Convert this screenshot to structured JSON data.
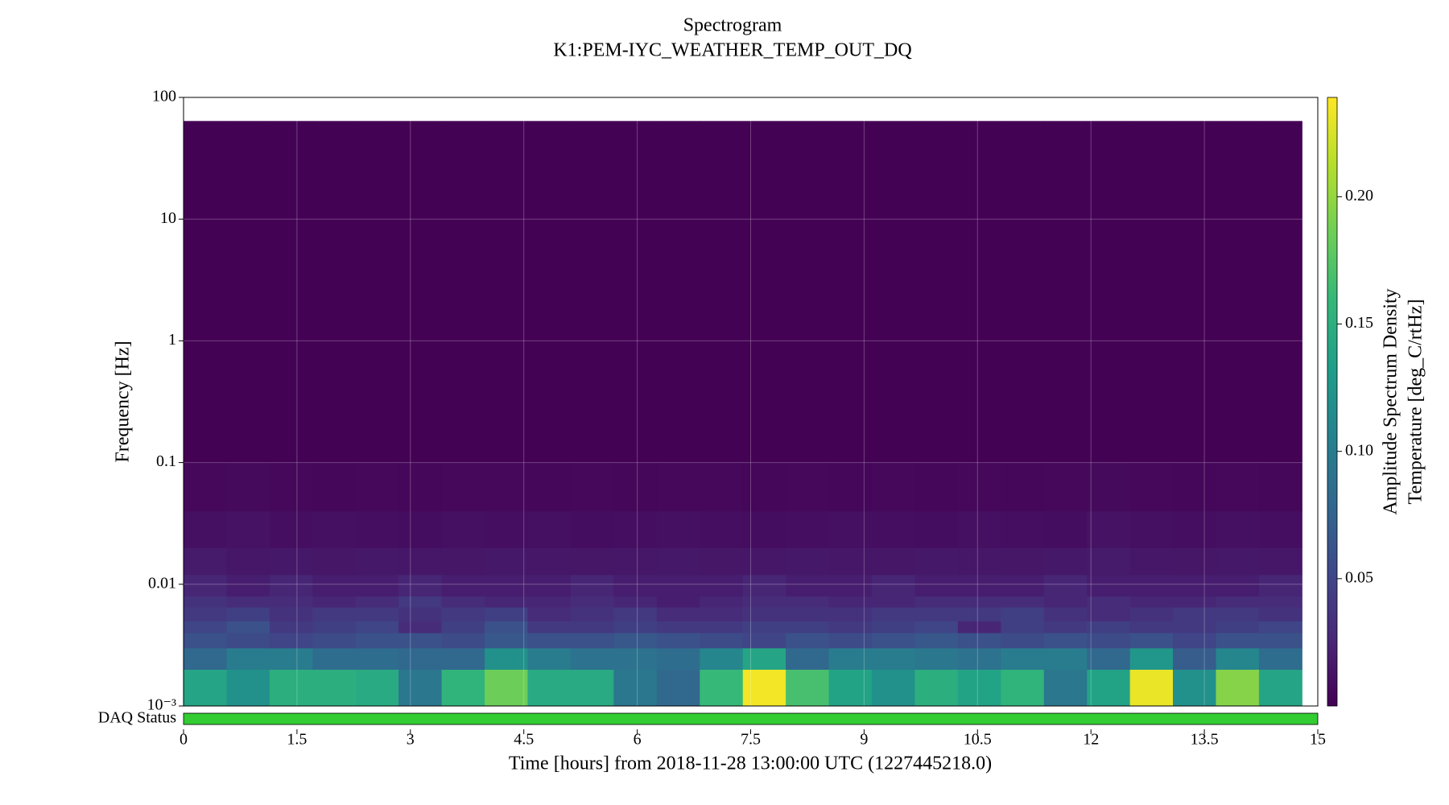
{
  "chart_data": {
    "type": "spectrogram",
    "title": "Spectrogram",
    "subtitle": "K1:PEM-IYC_WEATHER_TEMP_OUT_DQ",
    "xlabel": "Time [hours] from 2018-11-28 13:00:00 UTC (1227445218.0)",
    "ylabel": "Frequency [Hz]",
    "colorbar_label": [
      "Amplitude Spectrum Density",
      "Temperature [deg_C/rtHz]"
    ],
    "colormap": "viridis",
    "yscale": "log",
    "grid": true,
    "xlim": [
      0,
      15
    ],
    "xticks": [
      0,
      1.5,
      3,
      4.5,
      6,
      7.5,
      9,
      10.5,
      12,
      13.5,
      15
    ],
    "ylim": [
      0.001,
      100
    ],
    "yticks": [
      {
        "value": 0.001,
        "label": "10⁻³"
      },
      0.01,
      0.1,
      1,
      10,
      100
    ],
    "clim": [
      0,
      0.239
    ],
    "cticks": [
      0.05,
      {
        "value": 0.1,
        "label": "0.10"
      },
      0.15,
      {
        "value": 0.2,
        "label": "0.20"
      }
    ],
    "x_edges": [
      0,
      0.569,
      1.138,
      1.707,
      2.276,
      2.844,
      3.413,
      3.982,
      4.551,
      5.12,
      5.689,
      6.258,
      6.827,
      7.396,
      7.964,
      8.533,
      9.102,
      9.671,
      10.24,
      10.809,
      11.378,
      11.947,
      12.516,
      13.084,
      13.653,
      14.222,
      14.791
    ],
    "f_edges": [
      0.001,
      0.002,
      0.003,
      0.004,
      0.005,
      0.0065,
      0.008,
      0.012,
      0.02,
      0.04,
      0.1,
      64
    ],
    "z": [
      [
        0.14,
        0.12,
        0.15,
        0.15,
        0.145,
        0.095,
        0.155,
        0.185,
        0.145,
        0.145,
        0.095,
        0.08,
        0.16,
        0.235,
        0.168,
        0.138,
        0.12,
        0.15,
        0.138,
        0.155,
        0.095,
        0.138,
        0.232,
        0.12,
        0.195,
        0.14
      ],
      [
        0.08,
        0.1,
        0.1,
        0.085,
        0.085,
        0.08,
        0.08,
        0.12,
        0.1,
        0.09,
        0.09,
        0.085,
        0.11,
        0.14,
        0.08,
        0.1,
        0.1,
        0.095,
        0.09,
        0.1,
        0.1,
        0.08,
        0.125,
        0.07,
        0.11,
        0.085
      ],
      [
        0.06,
        0.055,
        0.05,
        0.055,
        0.06,
        0.06,
        0.055,
        0.065,
        0.06,
        0.06,
        0.065,
        0.06,
        0.055,
        0.05,
        0.06,
        0.055,
        0.06,
        0.065,
        0.06,
        0.055,
        0.06,
        0.055,
        0.06,
        0.05,
        0.06,
        0.06
      ],
      [
        0.05,
        0.06,
        0.04,
        0.045,
        0.05,
        0.03,
        0.045,
        0.06,
        0.04,
        0.04,
        0.045,
        0.04,
        0.04,
        0.045,
        0.045,
        0.04,
        0.045,
        0.05,
        0.025,
        0.045,
        0.04,
        0.045,
        0.04,
        0.04,
        0.045,
        0.05
      ],
      [
        0.04,
        0.045,
        0.035,
        0.04,
        0.04,
        0.035,
        0.04,
        0.045,
        0.03,
        0.035,
        0.04,
        0.03,
        0.03,
        0.035,
        0.035,
        0.035,
        0.04,
        0.04,
        0.04,
        0.045,
        0.035,
        0.03,
        0.035,
        0.04,
        0.04,
        0.035
      ],
      [
        0.035,
        0.03,
        0.03,
        0.025,
        0.03,
        0.04,
        0.03,
        0.025,
        0.025,
        0.03,
        0.025,
        0.02,
        0.025,
        0.03,
        0.03,
        0.025,
        0.025,
        0.03,
        0.03,
        0.03,
        0.025,
        0.03,
        0.025,
        0.025,
        0.03,
        0.03
      ],
      [
        0.025,
        0.02,
        0.025,
        0.02,
        0.02,
        0.025,
        0.02,
        0.02,
        0.02,
        0.025,
        0.02,
        0.02,
        0.02,
        0.025,
        0.02,
        0.02,
        0.025,
        0.02,
        0.02,
        0.02,
        0.025,
        0.02,
        0.02,
        0.02,
        0.02,
        0.025
      ],
      [
        0.018,
        0.015,
        0.016,
        0.014,
        0.016,
        0.015,
        0.014,
        0.016,
        0.015,
        0.014,
        0.015,
        0.016,
        0.014,
        0.015,
        0.016,
        0.015,
        0.014,
        0.016,
        0.015,
        0.014,
        0.016,
        0.018,
        0.015,
        0.014,
        0.016,
        0.015
      ],
      [
        0.01,
        0.012,
        0.009,
        0.01,
        0.009,
        0.008,
        0.01,
        0.009,
        0.01,
        0.008,
        0.009,
        0.01,
        0.009,
        0.008,
        0.009,
        0.01,
        0.009,
        0.008,
        0.01,
        0.009,
        0.008,
        0.012,
        0.01,
        0.009,
        0.01,
        0.009
      ],
      [
        0.005,
        0.006,
        0.005,
        0.004,
        0.005,
        0.004,
        0.005,
        0.005,
        0.004,
        0.005,
        0.004,
        0.005,
        0.005,
        0.004,
        0.005,
        0.004,
        0.005,
        0.004,
        0.005,
        0.004,
        0.005,
        0.006,
        0.005,
        0.004,
        0.005,
        0.004
      ],
      [
        0.001,
        0.001,
        0.001,
        0.001,
        0.001,
        0.001,
        0.001,
        0.001,
        0.001,
        0.001,
        0.001,
        0.001,
        0.001,
        0.001,
        0.001,
        0.001,
        0.001,
        0.001,
        0.001,
        0.001,
        0.001,
        0.001,
        0.001,
        0.001,
        0.001,
        0.001
      ]
    ],
    "daq": {
      "label": "DAQ Status",
      "color": "#33cc33",
      "segments": [
        [
          0,
          15
        ]
      ]
    }
  }
}
